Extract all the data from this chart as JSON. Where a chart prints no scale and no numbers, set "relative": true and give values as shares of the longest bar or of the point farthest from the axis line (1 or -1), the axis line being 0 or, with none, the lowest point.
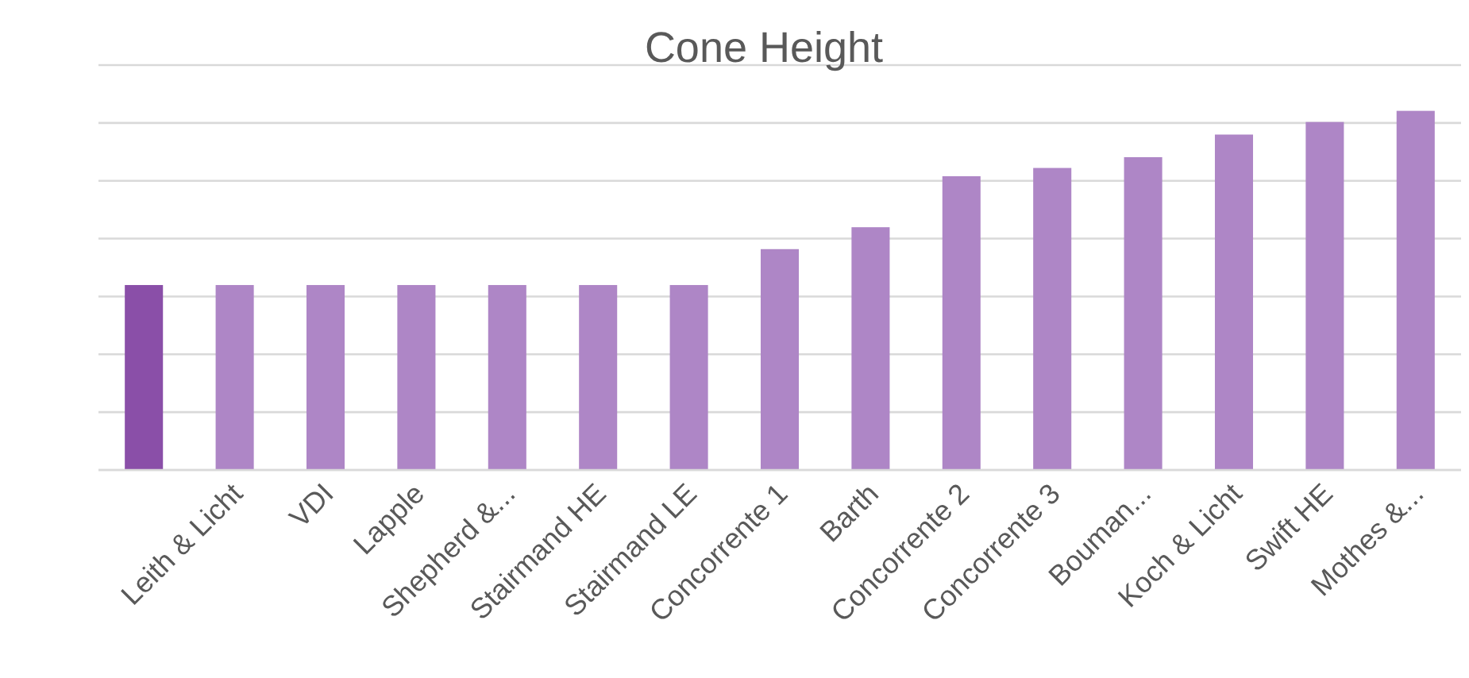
{
  "chart_data": {
    "type": "bar",
    "title": "Cone Height",
    "relative": true,
    "grid": true,
    "categories": [
      null,
      "Leith & Licht",
      "VDI",
      "Lapple",
      "Shepherd &...",
      "Stairmand HE",
      "Stairmand LE",
      "Concorrente 1",
      "Barth",
      "Concorrente 2",
      "Concorrente 3",
      "Bouman...",
      "Koch & Licht",
      "Swift HE",
      "Mothes &..."
    ],
    "values": [
      0.515,
      0.515,
      0.515,
      0.515,
      0.515,
      0.515,
      0.515,
      0.615,
      0.676,
      0.818,
      0.841,
      0.871,
      0.934,
      0.969,
      1
    ],
    "colors": [
      "#8a4fa8",
      "#ae86c6",
      "#ae86c6",
      "#ae86c6",
      "#ae86c6",
      "#ae86c6",
      "#ae86c6",
      "#ae86c6",
      "#ae86c6",
      "#ae86c6",
      "#ae86c6",
      "#ae86c6",
      "#ae86c6",
      "#ae86c6",
      "#ae86c6"
    ]
  }
}
